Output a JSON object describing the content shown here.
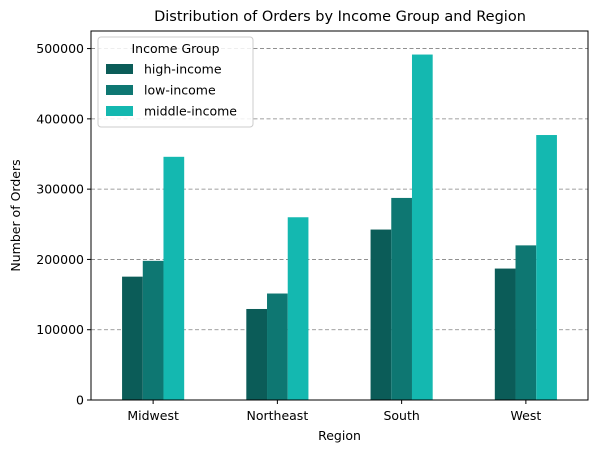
{
  "chart_data": {
    "type": "bar",
    "title": "Distribution of Orders by Income Group and Region",
    "xlabel": "Region",
    "ylabel": "Number of Orders",
    "categories": [
      "Midwest",
      "Northeast",
      "South",
      "West"
    ],
    "ylim": [
      0,
      525000
    ],
    "yticks": [
      0,
      100000,
      200000,
      300000,
      400000,
      500000
    ],
    "ytick_labels": [
      "0",
      "100000",
      "200000",
      "300000",
      "400000",
      "500000"
    ],
    "grid": "y-dashed",
    "legend": {
      "title": "Income Group",
      "placement": "top-left"
    },
    "series": [
      {
        "name": "high-income",
        "color": "#0b5c58",
        "values": [
          175500,
          129500,
          242500,
          187000
        ]
      },
      {
        "name": "low-income",
        "color": "#0e7772",
        "values": [
          198000,
          151500,
          287500,
          220000
        ]
      },
      {
        "name": "middle-income",
        "color": "#14b8b0",
        "values": [
          346000,
          260000,
          491500,
          377000
        ]
      }
    ]
  }
}
